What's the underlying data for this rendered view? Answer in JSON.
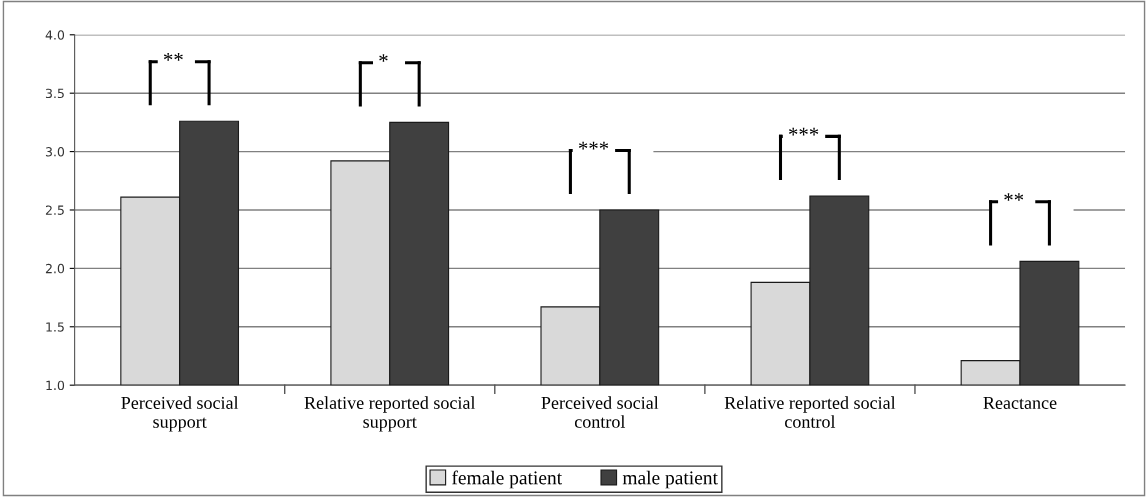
{
  "chart_data": {
    "type": "bar",
    "categories": [
      "Perceived social\nsupport",
      "Relative reported social\nsupport",
      "Perceived social\ncontrol",
      "Relative reported social\ncontrol",
      "Reactance"
    ],
    "series": [
      {
        "name": "female patient",
        "color": "#d9d9d9",
        "values": [
          2.61,
          2.92,
          1.67,
          1.88,
          1.21
        ]
      },
      {
        "name": "male patient",
        "color": "#404040",
        "values": [
          3.26,
          3.25,
          2.5,
          2.62,
          2.06
        ]
      }
    ],
    "ylim": [
      1.0,
      4.0
    ],
    "yticks": [
      {
        "value": 1.0,
        "label": "1.0"
      },
      {
        "value": 1.5,
        "label": "1.5"
      },
      {
        "value": 2.0,
        "label": "2.0"
      },
      {
        "value": 2.5,
        "label": "2.5"
      },
      {
        "value": 3.0,
        "label": "3.0"
      },
      {
        "value": 3.5,
        "label": "3.5"
      },
      {
        "value": 4.0,
        "label": "4.0"
      }
    ],
    "grid": "y",
    "legend": "bottom",
    "annotations": [
      "**",
      "*",
      "***",
      "***",
      "**"
    ]
  }
}
